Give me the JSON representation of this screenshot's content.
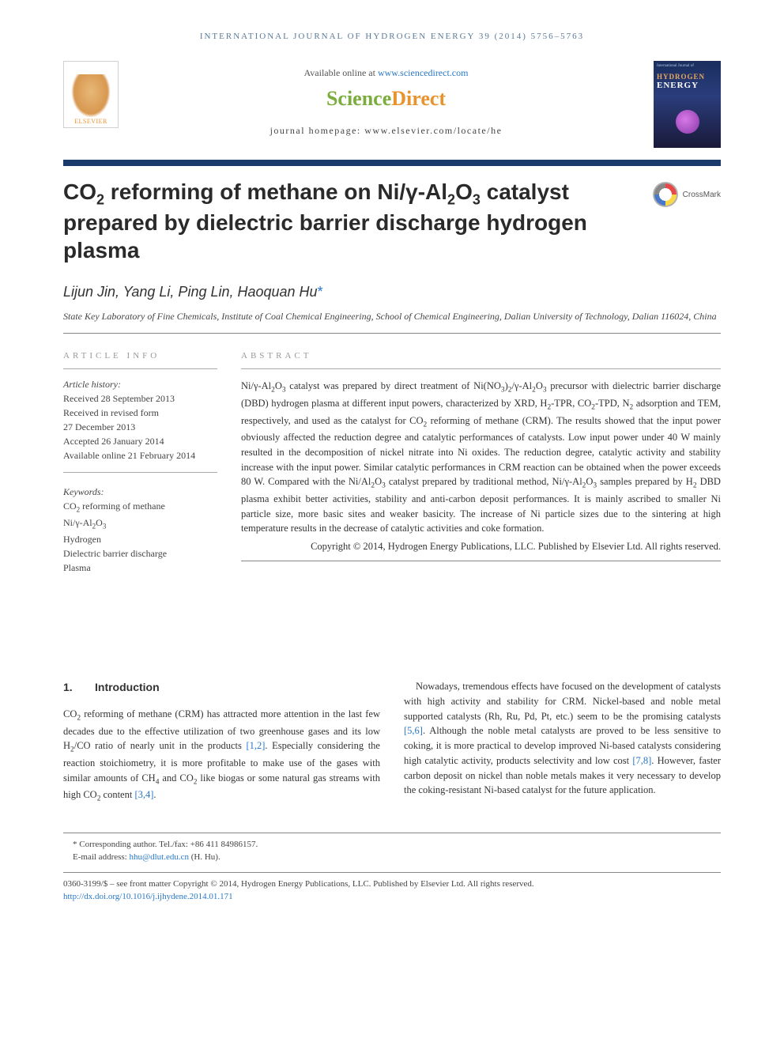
{
  "running_head": "INTERNATIONAL JOURNAL OF HYDROGEN ENERGY 39 (2014) 5756–5763",
  "banner": {
    "elsevier": "ELSEVIER",
    "available_prefix": "Available online at ",
    "available_link": "www.sciencedirect.com",
    "sd_science": "Science",
    "sd_direct": "Direct",
    "homepage_label": "journal homepage: www.elsevier.com/locate/he",
    "cover_top": "International Journal of",
    "cover_title": "HYDROGEN",
    "cover_sub": "ENERGY"
  },
  "crossmark": "CrossMark",
  "title_html": "CO<sub>2</sub> reforming of methane on Ni/γ-Al<sub>2</sub>O<sub>3</sub> catalyst prepared by dielectric barrier discharge hydrogen plasma",
  "authors_html": "Lijun Jin, Yang Li, Ping Lin, Haoquan Hu<span class=\"corr\">*</span>",
  "affiliation": "State Key Laboratory of Fine Chemicals, Institute of Coal Chemical Engineering, School of Chemical Engineering, Dalian University of Technology, Dalian 116024, China",
  "info": {
    "head": "ARTICLE INFO",
    "history_label": "Article history:",
    "history": [
      "Received 28 September 2013",
      "Received in revised form",
      "27 December 2013",
      "Accepted 26 January 2014",
      "Available online 21 February 2014"
    ],
    "keywords_label": "Keywords:",
    "keywords_html": [
      "CO<sub>2</sub> reforming of methane",
      "Ni/γ-Al<sub>2</sub>O<sub>3</sub>",
      "Hydrogen",
      "Dielectric barrier discharge",
      "Plasma"
    ]
  },
  "abstract": {
    "head": "ABSTRACT",
    "body_html": "Ni/γ-Al<sub>2</sub>O<sub>3</sub> catalyst was prepared by direct treatment of Ni(NO<sub>3</sub>)<sub>2</sub>/γ-Al<sub>2</sub>O<sub>3</sub> precursor with dielectric barrier discharge (DBD) hydrogen plasma at different input powers, characterized by XRD, H<sub>2</sub>-TPR, CO<sub>2</sub>-TPD, N<sub>2</sub> adsorption and TEM, respectively, and used as the catalyst for CO<sub>2</sub> reforming of methane (CRM). The results showed that the input power obviously affected the reduction degree and catalytic performances of catalysts. Low input power under 40 W mainly resulted in the decomposition of nickel nitrate into Ni oxides. The reduction degree, catalytic activity and stability increase with the input power. Similar catalytic performances in CRM reaction can be obtained when the power exceeds 80 W. Compared with the Ni/Al<sub>2</sub>O<sub>3</sub> catalyst prepared by traditional method, Ni/γ-Al<sub>2</sub>O<sub>3</sub> samples prepared by H<sub>2</sub> DBD plasma exhibit better activities, stability and anti-carbon deposit performances. It is mainly ascribed to smaller Ni particle size, more basic sites and weaker basicity. The increase of Ni particle sizes due to the sintering at high temperature results in the decrease of catalytic activities and coke formation.",
    "copyright": "Copyright © 2014, Hydrogen Energy Publications, LLC. Published by Elsevier Ltd. All rights reserved."
  },
  "section1": {
    "num": "1.",
    "title": "Introduction"
  },
  "col_left_html": "CO<sub>2</sub> reforming of methane (CRM) has attracted more attention in the last few decades due to the effective utilization of two greenhouse gases and its low H<sub>2</sub>/CO ratio of nearly unit in the products <span class=\"ref-link\">[1,2]</span>. Especially considering the reaction stoichiometry, it is more profitable to make use of the gases with similar amounts of CH<sub>4</sub> and CO<sub>2</sub> like biogas or some natural gas streams with high CO<sub>2</sub> content <span class=\"ref-link\">[3,4]</span>.",
  "col_right_html": "Nowadays, tremendous effects have focused on the development of catalysts with high activity and stability for CRM. Nickel-based and noble metal supported catalysts (Rh, Ru, Pd, Pt, etc.) seem to be the promising catalysts <span class=\"ref-link\">[5,6]</span>. Although the noble metal catalysts are proved to be less sensitive to coking, it is more practical to develop improved Ni-based catalysts considering high catalytic activity, products selectivity and low cost <span class=\"ref-link\">[7,8]</span>. However, faster carbon deposit on nickel than noble metals makes it very necessary to develop the coking-resistant Ni-based catalyst for the future application.",
  "footnotes": {
    "corr": "* Corresponding author. Tel./fax: +86 411 84986157.",
    "email_label": "E-mail address: ",
    "email": "hhu@dlut.edu.cn",
    "email_suffix": " (H. Hu)."
  },
  "doi": {
    "line1": "0360-3199/$ – see front matter Copyright © 2014, Hydrogen Energy Publications, LLC. Published by Elsevier Ltd. All rights reserved.",
    "link": "http://dx.doi.org/10.1016/j.ijhydene.2014.01.171"
  },
  "colors": {
    "rule": "#1a3a6a",
    "link": "#2878c8",
    "sd_green": "#7aad3c",
    "sd_orange": "#e8932e"
  }
}
